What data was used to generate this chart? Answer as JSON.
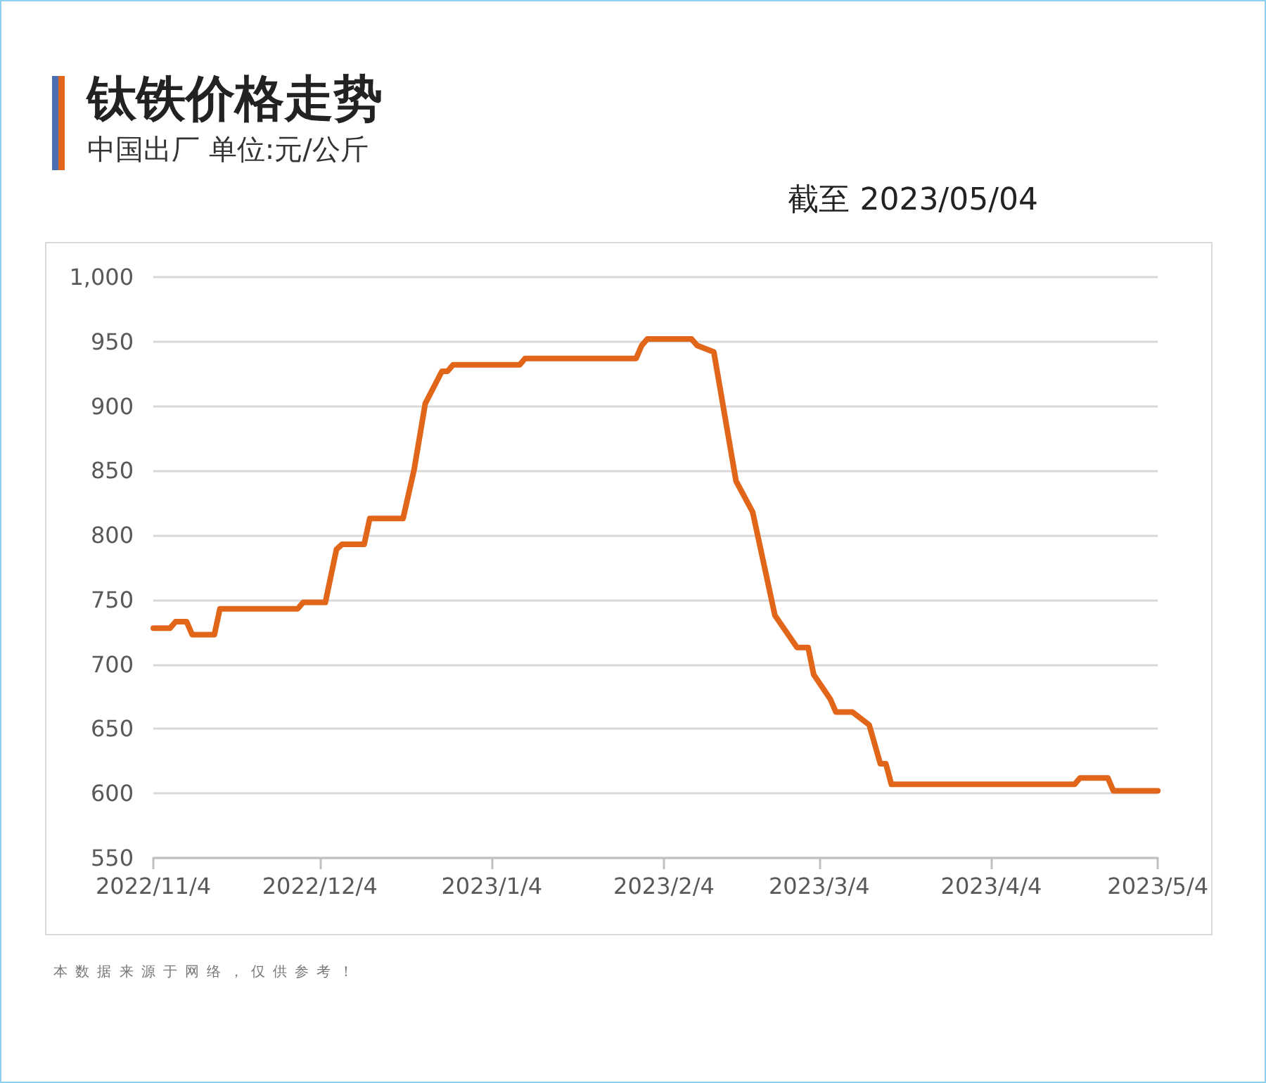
{
  "chart_data": {
    "type": "line",
    "title": "钛铁价格走势",
    "subtitle": "中国出厂 单位:元/公斤",
    "annotations": [
      "截至 2023/05/04",
      "本数据来源于网络，仅供参考！"
    ],
    "x": [
      "2022-11-04",
      "2022-11-07",
      "2022-11-08",
      "2022-11-10",
      "2022-11-11",
      "2022-11-15",
      "2022-11-16",
      "2022-11-30",
      "2022-12-01",
      "2022-12-05",
      "2022-12-07",
      "2022-12-08",
      "2022-12-12",
      "2022-12-13",
      "2022-12-19",
      "2022-12-21",
      "2022-12-23",
      "2022-12-26",
      "2022-12-27",
      "2022-12-28",
      "2023-01-09",
      "2023-01-10",
      "2023-01-30",
      "2023-01-31",
      "2023-02-01",
      "2023-02-09",
      "2023-02-10",
      "2023-02-13",
      "2023-02-17",
      "2023-02-20",
      "2023-02-24",
      "2023-02-28",
      "2023-03-02",
      "2023-03-03",
      "2023-03-06",
      "2023-03-07",
      "2023-03-10",
      "2023-03-13",
      "2023-03-15",
      "2023-03-16",
      "2023-03-17",
      "2023-04-19",
      "2023-04-20",
      "2023-04-25",
      "2023-04-26",
      "2023-05-04"
    ],
    "series": [
      {
        "color": "#e2661a",
        "values": [
          728,
          728,
          733,
          733,
          723,
          723,
          743,
          743,
          748,
          748,
          789,
          793,
          793,
          813,
          813,
          851,
          902,
          927,
          927,
          932,
          932,
          937,
          937,
          947,
          952,
          952,
          947,
          942,
          842,
          818,
          738,
          713,
          713,
          692,
          673,
          663,
          663,
          653,
          623,
          623,
          607,
          607,
          612,
          612,
          602,
          602
        ]
      }
    ],
    "xlim": [
      "2022-11-04",
      "2023-05-04"
    ],
    "xticks": [
      {
        "value": "2022-11-04",
        "label": "2022/11/4"
      },
      {
        "value": "2022-12-04",
        "label": "2022/12/4"
      },
      {
        "value": "2023-01-04",
        "label": "2023/1/4"
      },
      {
        "value": "2023-02-04",
        "label": "2023/2/4"
      },
      {
        "value": "2023-03-04",
        "label": "2023/3/4"
      },
      {
        "value": "2023-04-04",
        "label": "2023/4/4"
      },
      {
        "value": "2023-05-04",
        "label": "2023/5/4"
      }
    ],
    "ylim": [
      550,
      1000
    ],
    "yticks": [
      550,
      600,
      650,
      700,
      750,
      800,
      850,
      900,
      950,
      {
        "value": 1000,
        "label": "1,000"
      }
    ],
    "grid": "y",
    "marker": "none",
    "line_style": "solid"
  }
}
